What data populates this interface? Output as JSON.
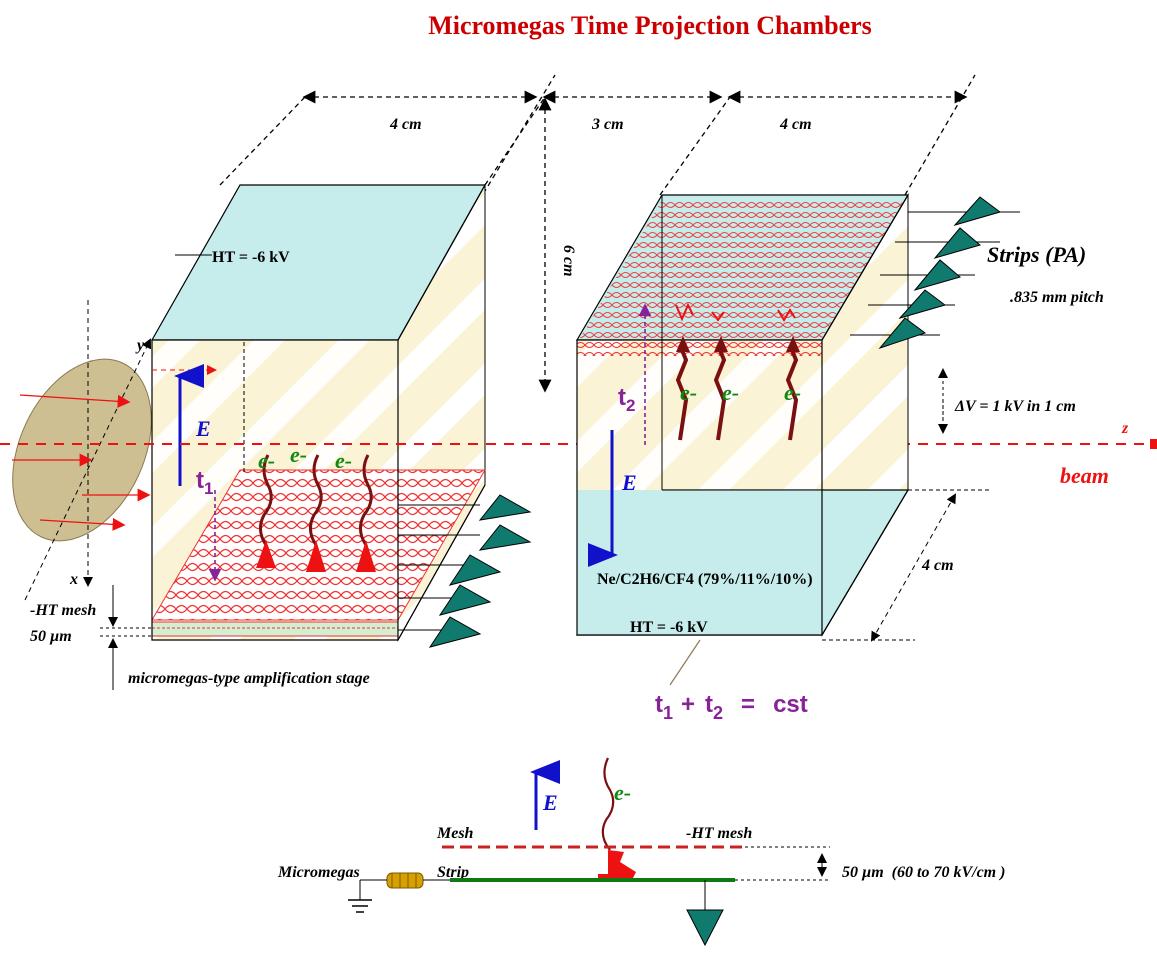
{
  "title": "Micromegas Time Projection Chambers",
  "colors": {
    "title": "#cc0000",
    "beam": "#ee1111",
    "field": "#1111cc",
    "time": "#882299",
    "electron": "#118811",
    "panel": "#c6ecec",
    "wall": "#fbf3d6",
    "stripe": "#f4e6b0",
    "mesh": "#ee3333",
    "amplifier": "#117a6e",
    "green_strip": "#0e7a14"
  },
  "dimensions": {
    "left_width": "4 cm",
    "gap": "3 cm",
    "right_width": "4 cm",
    "height": "6 cm",
    "depth": "4 cm"
  },
  "left_chamber": {
    "top_voltage": "HT = -6 kV",
    "field_label": "E",
    "time_label": "t",
    "time_sub": "1",
    "electron_labels": [
      "e-",
      "e-",
      "e-"
    ],
    "mesh_label": "-HT  mesh",
    "gap_label": "50 µm",
    "stage_label": "micromegas-type amplification stage"
  },
  "axes": {
    "x": "x",
    "y": "y",
    "z": "z"
  },
  "right_chamber": {
    "strips_label": "Strips (PA)",
    "pitch_label": ".835 mm pitch",
    "dv_label": "ΔV = 1 kV in 1 cm",
    "beam_label": "beam",
    "time_label": "t",
    "time_sub": "2",
    "field_label": "E",
    "electron_labels": [
      "e-",
      "e-",
      "e-"
    ],
    "gas_label": "Ne/C2H6/CF4 (79%/11%/10%)",
    "bottom_voltage": "HT = -6 kV"
  },
  "formula": {
    "t1": "t",
    "sub1": "1",
    "plus": "+",
    "t2": "t",
    "sub2": "2",
    "eq": "=",
    "cst": "cst"
  },
  "detail": {
    "field_label": "E",
    "electron_label": "e-",
    "mesh_label": "Mesh",
    "ht_mesh_label": "-HT  mesh",
    "micromegas_label": "Micromegas",
    "strip_label": "Strip",
    "gap_label": "50 µm",
    "field_strength": "(60 to 70 kV/cm   )"
  }
}
